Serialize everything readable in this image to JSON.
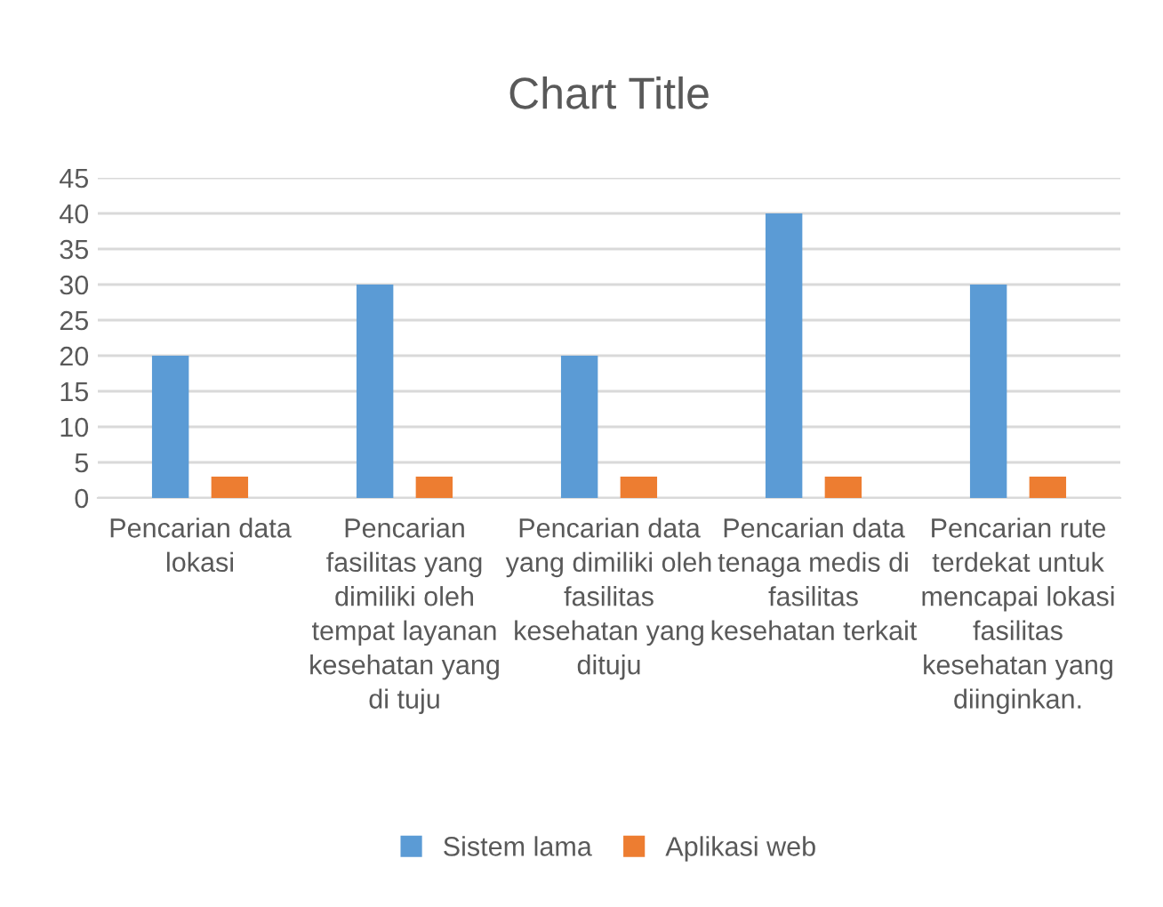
{
  "chart_data": {
    "type": "bar",
    "title": "Chart Title",
    "categories": [
      "Pencarian data\nlokasi",
      "Pencarian\nfasilitas yang\ndimiliki oleh\ntempat layanan\nkesehatan yang\ndi tuju",
      "Pencarian data\nyang dimiliki oleh\nfasilitas\nkesehatan yang\ndituju",
      "Pencarian data\ntenaga medis di\nfasilitas\nkesehatan terkait",
      "Pencarian rute\nterdekat untuk\nmencapai lokasi\nfasilitas\nkesehatan yang\ndiinginkan."
    ],
    "series": [
      {
        "name": "Sistem lama",
        "color": "#5b9bd5",
        "values": [
          20,
          30,
          20,
          40,
          30
        ]
      },
      {
        "name": "Aplikasi web",
        "color": "#ed7d31",
        "values": [
          3,
          3,
          3,
          3,
          3
        ]
      }
    ],
    "ylim": [
      0,
      45
    ],
    "yticks": [
      0,
      5,
      10,
      15,
      20,
      25,
      30,
      35,
      40,
      45
    ],
    "grid": "y",
    "legend": "bottom"
  }
}
